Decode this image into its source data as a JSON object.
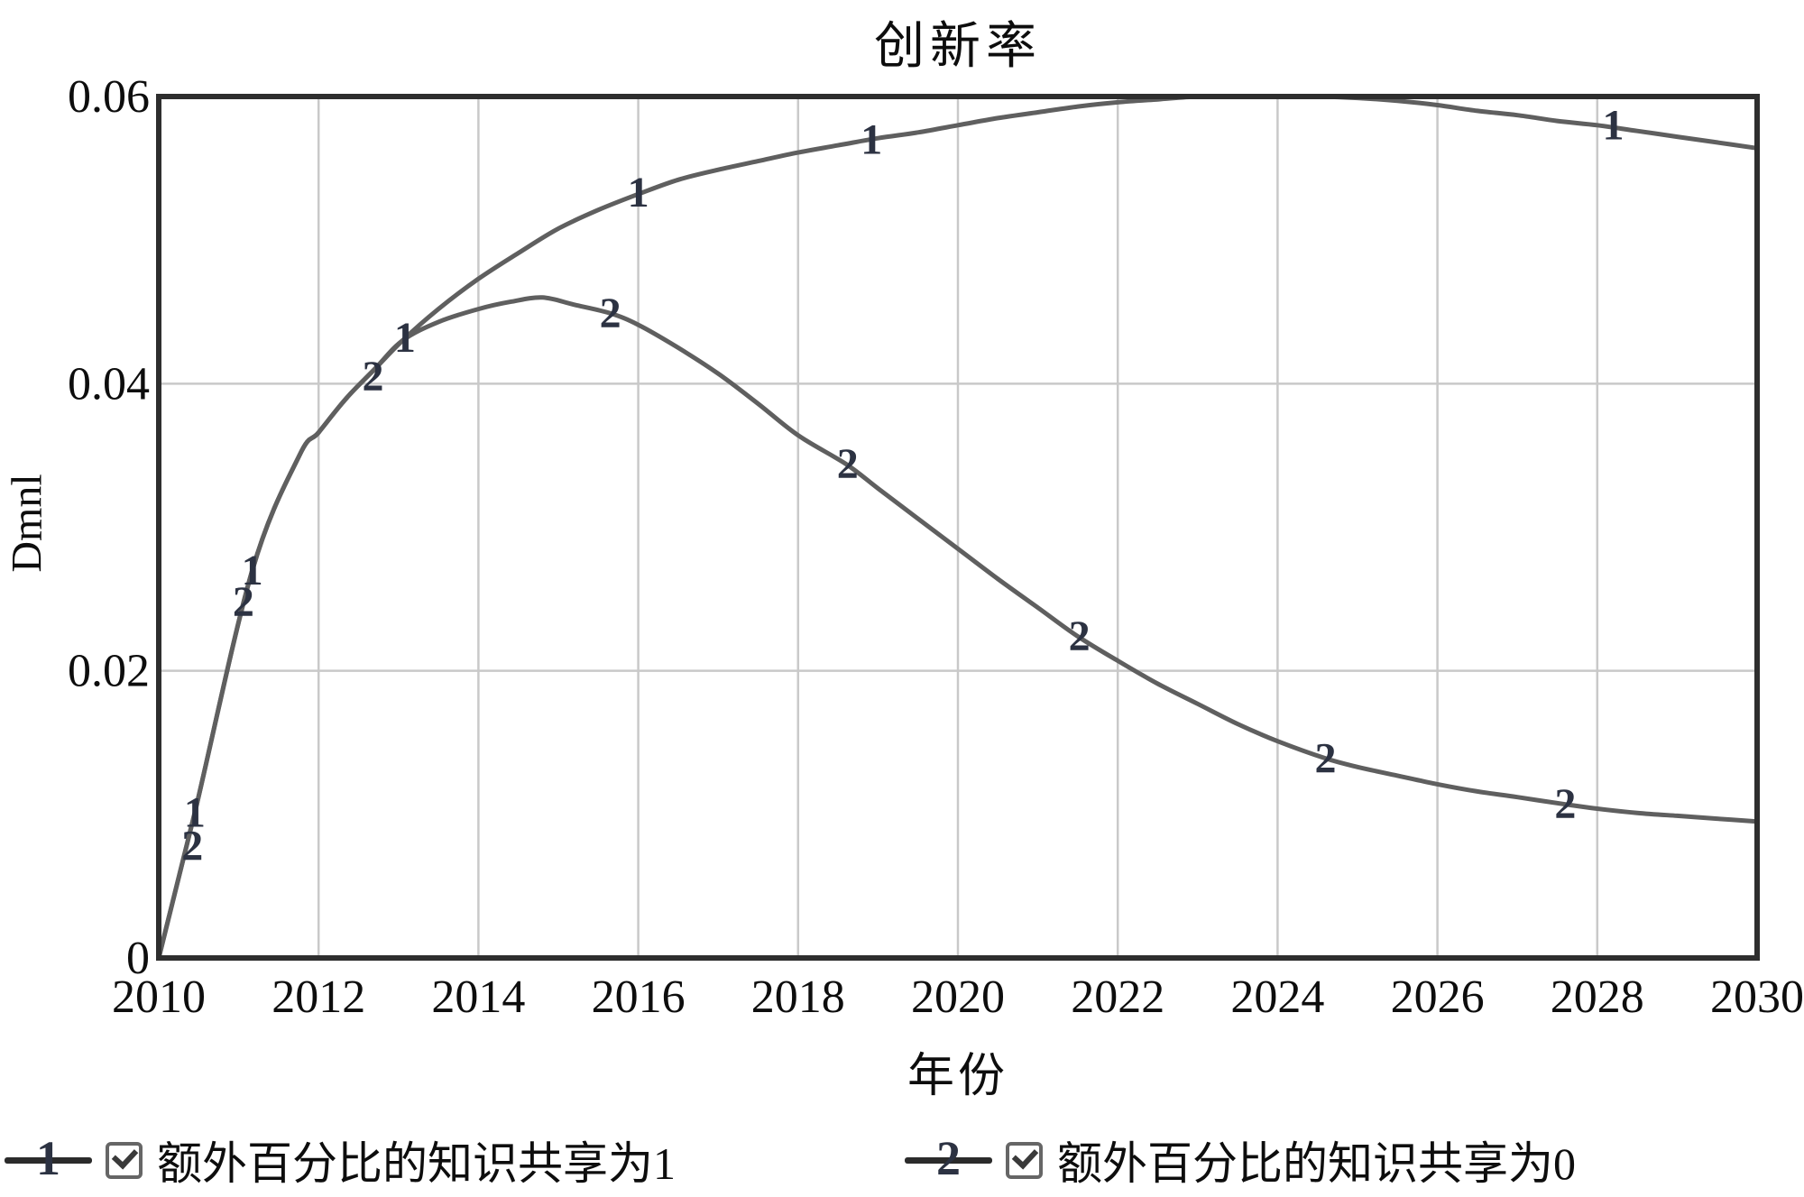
{
  "chart_data": {
    "type": "line",
    "title": "创新率",
    "xlabel": "年份",
    "ylabel": "Dmnl",
    "xlim": [
      2010,
      2030
    ],
    "ylim": [
      0,
      0.06
    ],
    "grid": true,
    "legend_position": "bottom",
    "xticks": [
      2010,
      2012,
      2014,
      2016,
      2018,
      2020,
      2022,
      2024,
      2026,
      2028,
      2030
    ],
    "yticks": [
      {
        "value": 0,
        "label": "0"
      },
      {
        "value": 0.02,
        "label": "0.02"
      },
      {
        "value": 0.04,
        "label": "0.04"
      },
      {
        "value": 0.06,
        "label": "0.06"
      }
    ],
    "colors": {
      "curve": "#5f5f5f",
      "grid": "#c9c9c9",
      "frame": "#2e2e2e",
      "marker_text": "#2c3242",
      "text": "#0d0d0d",
      "checkbox_border": "#666666",
      "check": "#3a3a3a"
    },
    "series": [
      {
        "name": "额外百分比的知识共享为1",
        "marker": "1",
        "checkbox_checked": true,
        "points": [
          [
            2010,
            0
          ],
          [
            2010.45,
            0.0101
          ],
          [
            2011.17,
            0.027
          ],
          [
            2011.76,
            0.035
          ],
          [
            2012,
            0.0366
          ],
          [
            2012.35,
            0.039
          ],
          [
            2012.7,
            0.041
          ],
          [
            2013.05,
            0.043
          ],
          [
            2013.5,
            0.0452
          ],
          [
            2014,
            0.0473
          ],
          [
            2014.5,
            0.0491
          ],
          [
            2015,
            0.0508
          ],
          [
            2015.5,
            0.0521
          ],
          [
            2016,
            0.0532
          ],
          [
            2016.5,
            0.0542
          ],
          [
            2017,
            0.0549
          ],
          [
            2017.5,
            0.0555
          ],
          [
            2018,
            0.0561
          ],
          [
            2018.5,
            0.0566
          ],
          [
            2019,
            0.0571
          ],
          [
            2019.5,
            0.0575
          ],
          [
            2020,
            0.058
          ],
          [
            2020.5,
            0.0585
          ],
          [
            2021,
            0.0589
          ],
          [
            2021.5,
            0.0593
          ],
          [
            2022,
            0.0596
          ],
          [
            2022.5,
            0.0598
          ],
          [
            2023,
            0.06
          ],
          [
            2023.5,
            0.06
          ],
          [
            2024,
            0.06
          ],
          [
            2024.5,
            0.06
          ],
          [
            2025,
            0.0599
          ],
          [
            2025.5,
            0.0597
          ],
          [
            2026,
            0.0594
          ],
          [
            2026.5,
            0.059
          ],
          [
            2027,
            0.0587
          ],
          [
            2027.5,
            0.0583
          ],
          [
            2028,
            0.058
          ],
          [
            2028.5,
            0.0576
          ],
          [
            2029,
            0.0572
          ],
          [
            2029.5,
            0.0568
          ],
          [
            2030,
            0.0564
          ]
        ],
        "marker_points": [
          [
            2010.45,
            0.0101
          ],
          [
            2011.17,
            0.027
          ],
          [
            2013.08,
            0.0432
          ],
          [
            2016.0,
            0.0533
          ],
          [
            2018.92,
            0.057
          ],
          [
            2028.2,
            0.058
          ]
        ]
      },
      {
        "name": "额外百分比的知识共享为0",
        "marker": "2",
        "checkbox_checked": true,
        "points": [
          [
            2010,
            0
          ],
          [
            2010.45,
            0.0101
          ],
          [
            2011.17,
            0.027
          ],
          [
            2011.76,
            0.035
          ],
          [
            2012,
            0.0366
          ],
          [
            2012.35,
            0.039
          ],
          [
            2012.7,
            0.041
          ],
          [
            2013.05,
            0.043
          ],
          [
            2013.5,
            0.0443
          ],
          [
            2014,
            0.0452
          ],
          [
            2014.4,
            0.0457
          ],
          [
            2014.8,
            0.046
          ],
          [
            2015.2,
            0.0455
          ],
          [
            2015.65,
            0.0449
          ],
          [
            2016,
            0.0441
          ],
          [
            2016.5,
            0.0425
          ],
          [
            2017,
            0.0407
          ],
          [
            2017.5,
            0.0386
          ],
          [
            2018,
            0.0364
          ],
          [
            2018.6,
            0.0344
          ],
          [
            2019,
            0.0327
          ],
          [
            2019.5,
            0.0306
          ],
          [
            2020,
            0.0285
          ],
          [
            2020.5,
            0.0264
          ],
          [
            2021,
            0.0244
          ],
          [
            2021.5,
            0.0224
          ],
          [
            2022,
            0.0207
          ],
          [
            2022.5,
            0.0191
          ],
          [
            2023,
            0.0177
          ],
          [
            2023.5,
            0.0163
          ],
          [
            2024,
            0.0151
          ],
          [
            2024.6,
            0.0139
          ],
          [
            2025,
            0.0133
          ],
          [
            2025.5,
            0.0127
          ],
          [
            2026,
            0.0121
          ],
          [
            2026.5,
            0.0116
          ],
          [
            2027,
            0.0112
          ],
          [
            2027.6,
            0.0107
          ],
          [
            2028,
            0.0104
          ],
          [
            2028.5,
            0.0101
          ],
          [
            2029,
            0.0099
          ],
          [
            2029.5,
            0.0097
          ],
          [
            2030,
            0.0095
          ]
        ],
        "marker_points": [
          [
            2010.42,
            0.0078
          ],
          [
            2011.06,
            0.0248
          ],
          [
            2012.68,
            0.0405
          ],
          [
            2015.65,
            0.0449
          ],
          [
            2018.62,
            0.0344
          ],
          [
            2021.52,
            0.0224
          ],
          [
            2024.6,
            0.0139
          ],
          [
            2027.6,
            0.0107
          ]
        ]
      }
    ]
  }
}
